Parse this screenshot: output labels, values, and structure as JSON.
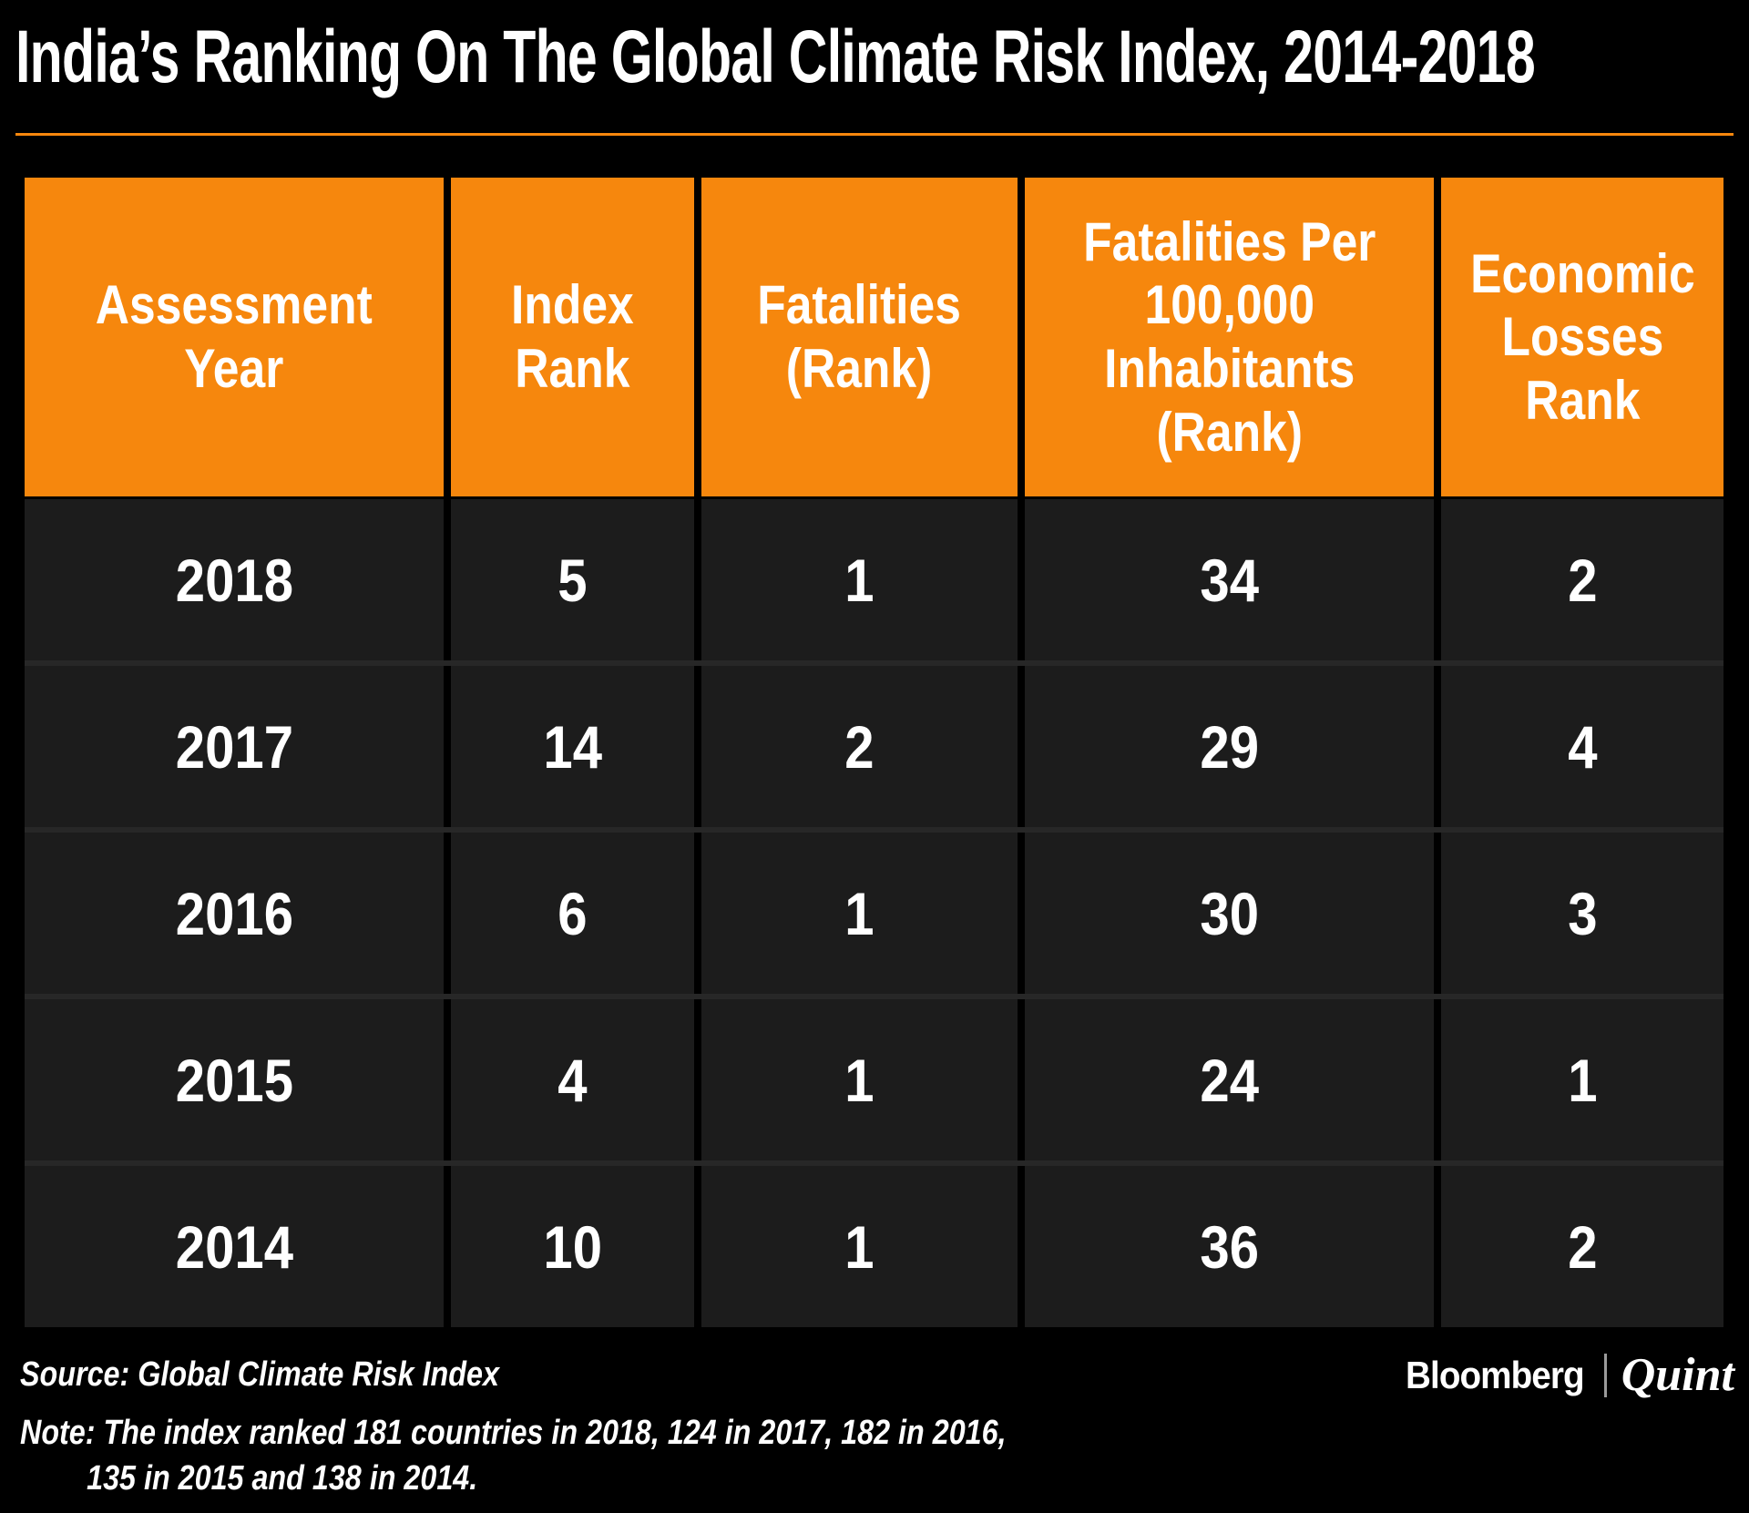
{
  "title": "India’s Ranking On The Global Climate Risk Index, 2014-2018",
  "colors": {
    "accent_orange": "#F6870D",
    "background": "#000000",
    "row_background": "#1C1C1C",
    "row_separator": "#272727",
    "text": "#FFFFFF",
    "logo_divider_gray": "#9A9A9A"
  },
  "table": {
    "header_lines": [
      [
        "Assessment",
        "Year"
      ],
      [
        "Index",
        "Rank"
      ],
      [
        "Fatalities",
        "(Rank)"
      ],
      [
        "Fatalities Per",
        "100,000",
        "Inhabitants",
        "(Rank)"
      ],
      [
        "Economic",
        "Losses",
        "Rank"
      ]
    ]
  },
  "chart_data": {
    "type": "table",
    "title": "India’s Ranking On The Global Climate Risk Index, 2014-2018",
    "columns": [
      "Assessment Year",
      "Index Rank",
      "Fatalities (Rank)",
      "Fatalities Per 100,000 Inhabitants (Rank)",
      "Economic Losses Rank"
    ],
    "rows": [
      [
        "2018",
        "5",
        "1",
        "34",
        "2"
      ],
      [
        "2017",
        "14",
        "2",
        "29",
        "4"
      ],
      [
        "2016",
        "6",
        "1",
        "30",
        "3"
      ],
      [
        "2015",
        "4",
        "1",
        "24",
        "1"
      ],
      [
        "2014",
        "10",
        "1",
        "36",
        "2"
      ]
    ],
    "source": "Global Climate Risk Index",
    "note": "The index ranked 181 countries in 2018, 124 in 2017, 182 in 2016, 135 in 2015 and 138 in 2014."
  },
  "footer": {
    "source_text": "Source: Global Climate Risk Index",
    "note_line1": "Note: The index ranked 181 countries in 2018, 124 in 2017, 182 in 2016,",
    "note_line2": "135 in 2015 and 138 in 2014.",
    "logo_bloomberg": "Bloomberg",
    "logo_quint": "Quint"
  }
}
